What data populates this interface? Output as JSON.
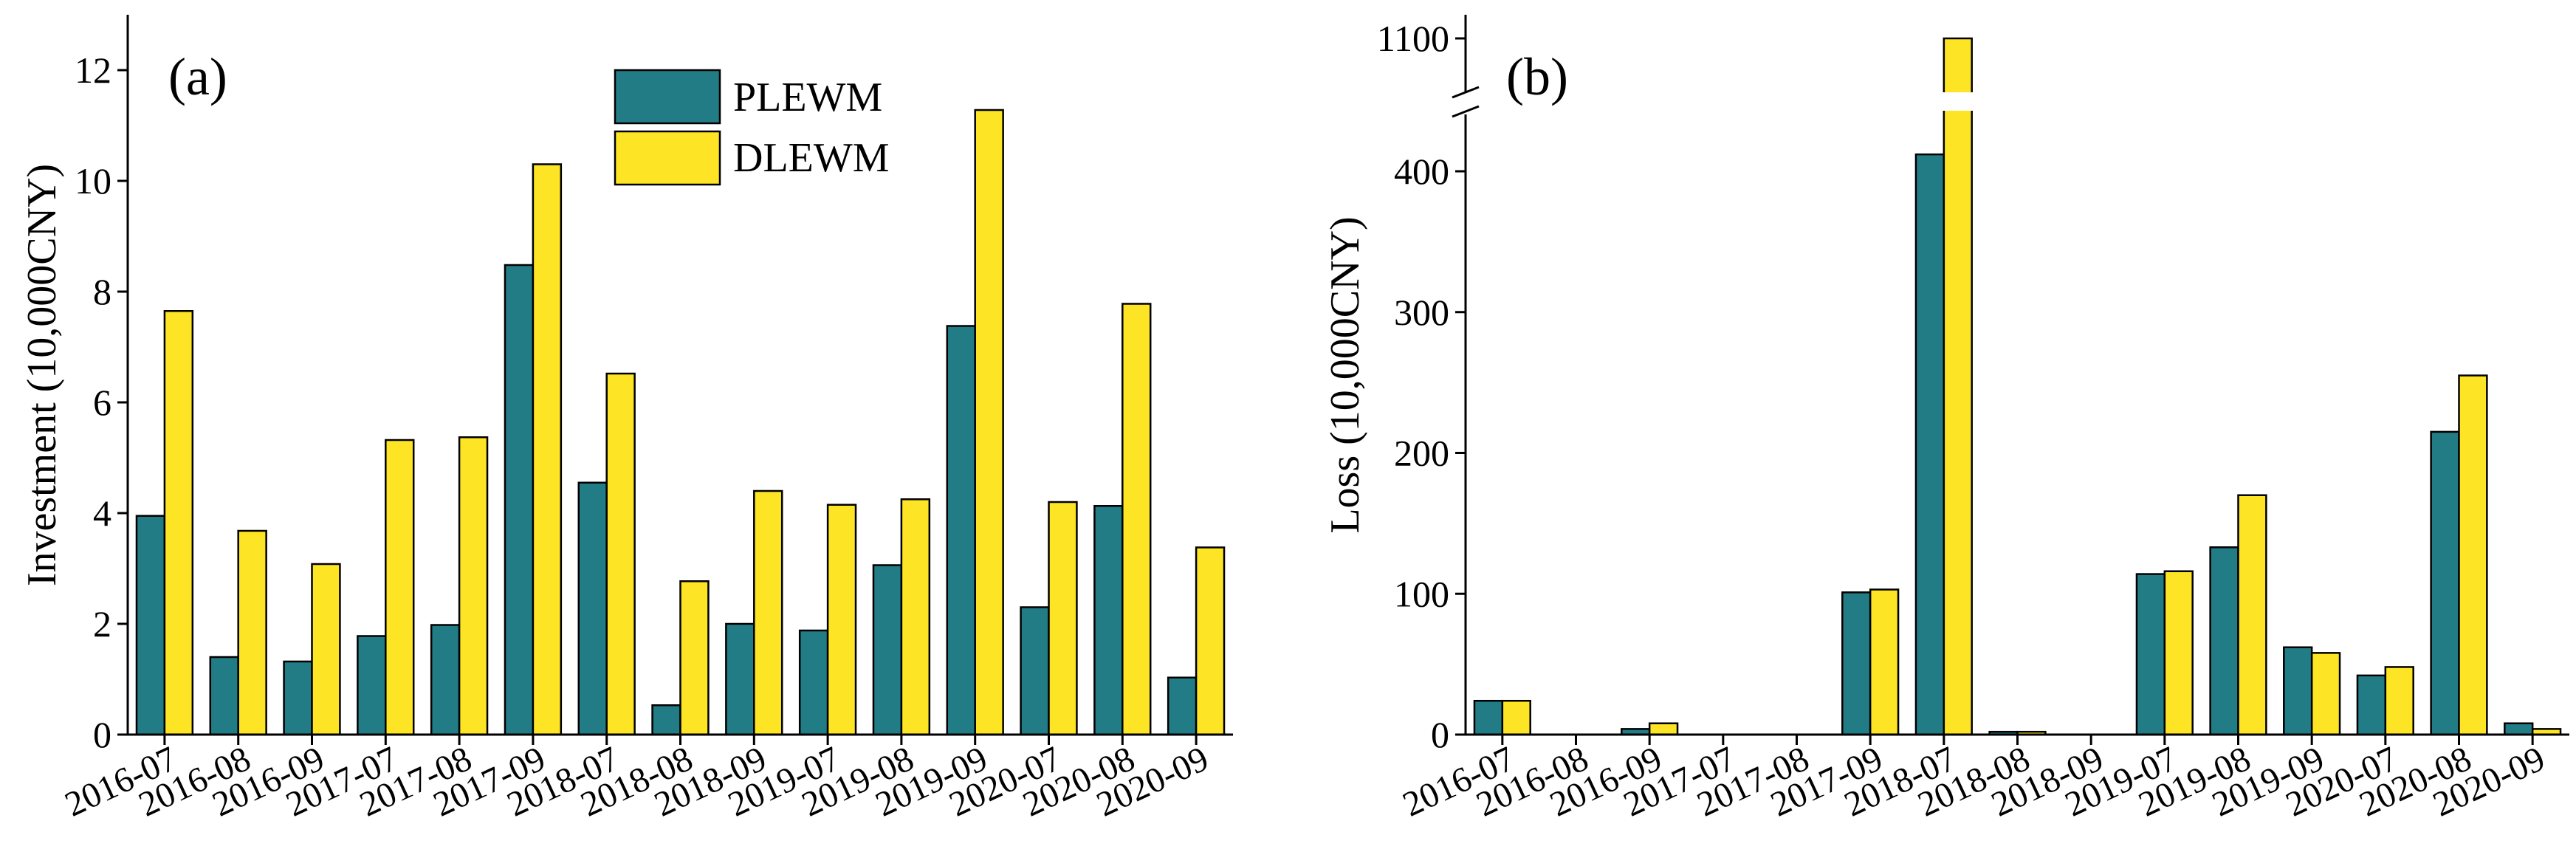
{
  "chart_data": [
    {
      "type": "bar",
      "panel_label": "(a)",
      "ylabel": "Investment (10,000CNY)",
      "xlabel": "",
      "ylim": [
        0,
        13
      ],
      "yticks": [
        0,
        2,
        4,
        6,
        8,
        10,
        12
      ],
      "categories": [
        "2016-07",
        "2016-08",
        "2016-09",
        "2017-07",
        "2017-08",
        "2017-09",
        "2018-07",
        "2018-08",
        "2018-09",
        "2019-07",
        "2019-08",
        "2019-09",
        "2020-07",
        "2020-08",
        "2020-09"
      ],
      "series": [
        {
          "name": "PLEWM",
          "color": "#227c86",
          "values": [
            3.95,
            1.4,
            1.32,
            1.78,
            1.98,
            8.48,
            4.55,
            0.53,
            2.0,
            1.88,
            3.06,
            7.38,
            2.3,
            4.13,
            1.03
          ]
        },
        {
          "name": "DLEWM",
          "color": "#fde424",
          "values": [
            7.65,
            3.68,
            3.08,
            5.32,
            5.37,
            10.3,
            6.52,
            2.77,
            4.4,
            4.15,
            4.25,
            11.28,
            4.2,
            7.78,
            3.38
          ]
        }
      ],
      "legend": "top-center"
    },
    {
      "type": "bar",
      "panel_label": "(b)",
      "ylabel": "Loss (10,000CNY)",
      "xlabel": "",
      "ylim": [
        0,
        450
      ],
      "axis_break": [
        450,
        1075
      ],
      "upper_ylim": [
        1075,
        1115
      ],
      "yticks": [
        0,
        100,
        200,
        300,
        400
      ],
      "upper_yticks": [
        1100
      ],
      "categories": [
        "2016-07",
        "2016-08",
        "2016-09",
        "2017-07",
        "2017-08",
        "2017-09",
        "2018-07",
        "2018-08",
        "2018-09",
        "2019-07",
        "2019-08",
        "2019-09",
        "2020-07",
        "2020-08",
        "2020-09"
      ],
      "series": [
        {
          "name": "PLEWM",
          "color": "#227c86",
          "values": [
            24,
            0,
            4,
            0,
            0,
            101,
            412,
            2,
            0,
            114,
            133,
            62,
            42,
            215,
            8
          ]
        },
        {
          "name": "DLEWM",
          "color": "#fde424",
          "values": [
            24,
            0,
            8,
            0,
            0,
            103,
            1100,
            2,
            0,
            116,
            170,
            58,
            48,
            255,
            4
          ]
        }
      ]
    }
  ]
}
